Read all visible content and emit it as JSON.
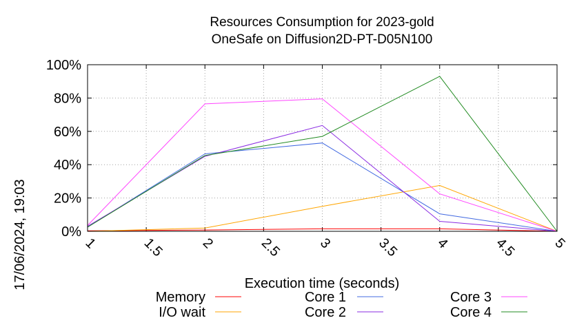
{
  "chart_data": {
    "type": "line",
    "title": "Resources Consumption for 2023-gold",
    "subtitle": "OneSafe on Diffusion2D-PT-D05N100",
    "xlabel": "Execution time (seconds)",
    "ylabel": "",
    "xlim": [
      1,
      5
    ],
    "ylim": [
      0,
      100
    ],
    "x_ticks": [
      "1",
      "1.5",
      "2",
      "2.5",
      "3",
      "3.5",
      "4",
      "4.5",
      "5"
    ],
    "y_ticks": [
      "0%",
      "20%",
      "40%",
      "60%",
      "80%",
      "100%"
    ],
    "grid": true,
    "legend_position": "bottom",
    "timestamp": "17/06/2024, 19:03",
    "series": [
      {
        "name": "Memory",
        "color": "#ff0000",
        "x": [
          1,
          2,
          3,
          4,
          5
        ],
        "y": [
          0.3,
          0.8,
          1.5,
          1.5,
          0
        ]
      },
      {
        "name": "I/O wait",
        "color": "#ffa500",
        "x": [
          1,
          2,
          3,
          4,
          5
        ],
        "y": [
          0,
          2,
          15,
          27.5,
          0
        ]
      },
      {
        "name": "Core 1",
        "color": "#4169e1",
        "x": [
          1,
          2,
          3,
          4,
          5
        ],
        "y": [
          2.5,
          46.5,
          53,
          10.5,
          0
        ]
      },
      {
        "name": "Core 2",
        "color": "#8a2be2",
        "x": [
          1,
          2,
          3,
          4,
          5
        ],
        "y": [
          3,
          45,
          63.5,
          6,
          0
        ]
      },
      {
        "name": "Core 3",
        "color": "#ff44ff",
        "x": [
          1,
          2,
          3,
          4,
          5
        ],
        "y": [
          3.5,
          76.5,
          79.5,
          22.5,
          0
        ]
      },
      {
        "name": "Core 4",
        "color": "#228b22",
        "x": [
          1,
          2,
          3,
          4,
          5
        ],
        "y": [
          2.5,
          45.5,
          57,
          93,
          0
        ]
      }
    ]
  }
}
